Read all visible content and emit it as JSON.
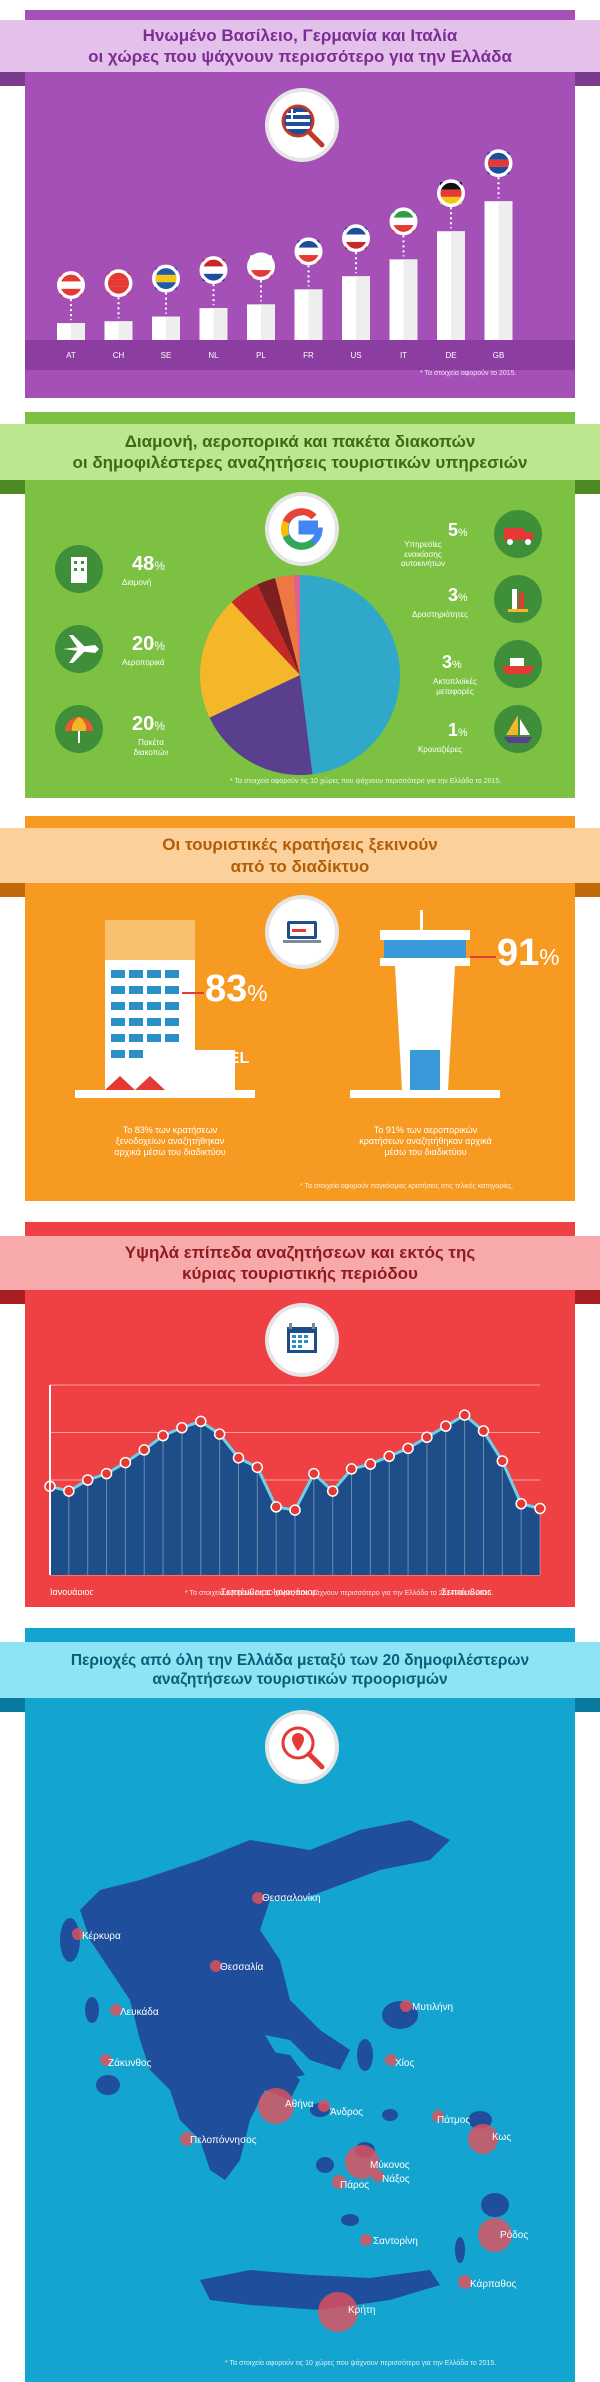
{
  "section1": {
    "title_line1": "Ηνωμένο Βασίλειο, Γερμανία και Ιταλία",
    "title_line2": "οι χώρες που ψάχνουν περισσότερο για την Ελλάδα",
    "credit": "* Τα στοιχεία αφορούν το 2015.",
    "colors": {
      "bg": "#a450b7",
      "ribbon": "#e3c1ea",
      "title": "#7b2d93"
    }
  },
  "section2": {
    "title_line1": "Διαμονή, αεροπορικά και πακέτα διακοπών",
    "title_line2": "οι δημοφιλέστερες αναζητήσεις τουριστικών υπηρεσιών",
    "credit": "* Τα στοιχεία αφορούν τις 10 χώρες που ψάχνουν περισσότερο για την Ελλάδα το 2015.",
    "items": [
      {
        "pct": "48",
        "label": "Διαμονή"
      },
      {
        "pct": "20",
        "label": "Αεροπορικά"
      },
      {
        "pct": "20",
        "label": "Πακέτα διακοπών"
      },
      {
        "pct": "5",
        "label": "Υπηρεσίες ενοικίασης αυτοκινήτων"
      },
      {
        "pct": "3",
        "label": "Δραστηριότητες"
      },
      {
        "pct": "3",
        "label": "Ακτοπλοϊκές μεταφορές"
      },
      {
        "pct": "1",
        "label": "Κρουαζιέρες"
      }
    ],
    "colors": {
      "bg": "#7cc142",
      "ribbon": "#bde78e",
      "title": "#3b6b17"
    }
  },
  "section3": {
    "title_line1": "Οι τουριστικές κρατήσεις ξεκινούν",
    "title_line2": "από το διαδίκτυο",
    "hotel_sign": "HOTEL",
    "hotel_pct": "83",
    "hotel_text": "Το 83% των κρατήσεων ξενοδοχείων αναζητήθηκαν αρχικά μέσω του διαδικτύου",
    "air_pct": "91",
    "air_text": "Το 91% των αεροπορικών κρατήσεων αναζητήθηκαν αρχικά μέσω του διαδικτύου",
    "credit": "* Τα στοιχεία αφορούν παγκόσμιες κρατήσεις στις τελικές κατηγορίες.",
    "pct_symbol": "%",
    "colors": {
      "bg": "#f79a21",
      "ribbon": "#fbd09a",
      "title": "#b35d05"
    }
  },
  "section4": {
    "title_line1": "Υψηλά επίπεδα αναζητήσεων και εκτός της",
    "title_line2": "κύριας τουριστικής περιόδου",
    "credit": "* Τα στοιχεία αφορούν τις 10 χώρες που ψάχνουν περισσότερο για την Ελλάδα το 2014 και το 2015.",
    "colors": {
      "bg": "#ef4044",
      "ribbon": "#f7a9ab",
      "title": "#8e1c1f",
      "area": "#1d4e89"
    }
  },
  "section5": {
    "title_line1": "Περιοχές από όλη την Ελλάδα μεταξύ των 20 δημοφιλέστερων",
    "title_line2": "αναζητήσεων τουριστικών προορισμών",
    "credit": "* Τα στοιχεία αφορούν τις 10 χώρες που ψάχνουν περισσότερο για την Ελλάδα το 2015.",
    "cities": [
      {
        "name": "Θεσσαλονίκη"
      },
      {
        "name": "Κέρκυρα"
      },
      {
        "name": "Θεσσαλία"
      },
      {
        "name": "Μυτιλήνη"
      },
      {
        "name": "Λευκάδα"
      },
      {
        "name": "Χίος"
      },
      {
        "name": "Ζάκυνθος"
      },
      {
        "name": "Αθήνα"
      },
      {
        "name": "Άνδρος"
      },
      {
        "name": "Πάτμος"
      },
      {
        "name": "Κως"
      },
      {
        "name": "Πελοπόννησος"
      },
      {
        "name": "Μύκονος"
      },
      {
        "name": "Νάξος"
      },
      {
        "name": "Πάρος"
      },
      {
        "name": "Ρόδος"
      },
      {
        "name": "Σαντορίνη"
      },
      {
        "name": "Κάρπαθος"
      },
      {
        "name": "Κρήτη"
      }
    ],
    "colors": {
      "bg": "#13a4d0",
      "ribbon": "#8ee4f5",
      "title": "#0b5e7a",
      "land": "#1f4e9c"
    }
  },
  "chart_data": [
    {
      "type": "bar",
      "categories": [
        "AT",
        "CH",
        "SE",
        "NL",
        "PL",
        "FR",
        "US",
        "IT",
        "DE",
        "GB"
      ],
      "values": [
        18,
        20,
        25,
        34,
        38,
        54,
        68,
        86,
        116,
        148
      ],
      "ylim": [
        0,
        160
      ]
    },
    {
      "type": "pie",
      "categories": [
        "Διαμονή",
        "Αεροπορικά",
        "Πακέτα διακοπών",
        "Υπηρεσίες ενοικίασης αυτοκινήτων",
        "Δραστηριότητες",
        "Ακτοπλοϊκές μεταφορές",
        "Κρουαζιέρες"
      ],
      "values": [
        48,
        20,
        20,
        5,
        3,
        3,
        1
      ],
      "colors": [
        "#2fa8c9",
        "#5a3f8f",
        "#f5b72a",
        "#c62828",
        "#7e1f1f",
        "#ee7744",
        "#e05f93"
      ]
    },
    {
      "type": "area",
      "x_labels": [
        "Ιανουάριος",
        "Σεπτέμβριος",
        "Ιανουάριος",
        "Σεπτέμβριος"
      ],
      "values": [
        56,
        53,
        60,
        64,
        71,
        79,
        88,
        93,
        97,
        89,
        74,
        68,
        43,
        41,
        64,
        53,
        67,
        70,
        75,
        80,
        87,
        94,
        101,
        91,
        72,
        45,
        42
      ],
      "ylim": [
        0,
        120
      ]
    }
  ]
}
